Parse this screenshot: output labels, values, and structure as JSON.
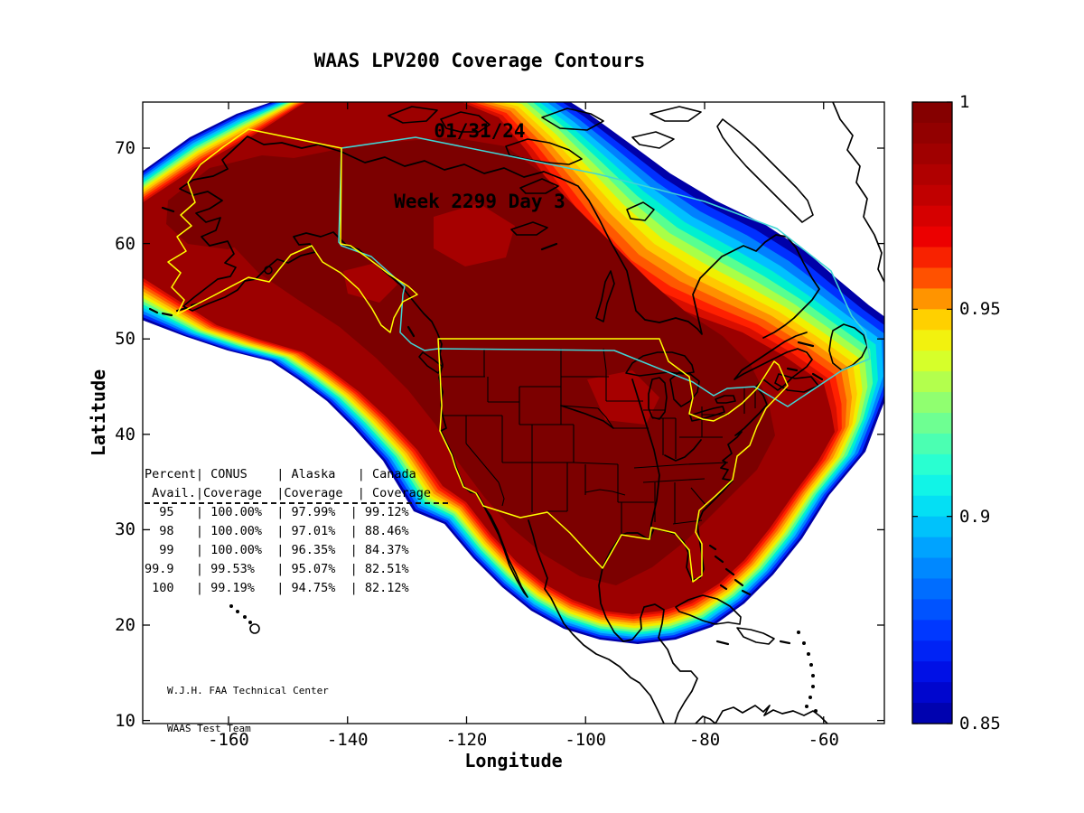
{
  "header": {
    "title": "WAAS LPV200 Coverage Contours",
    "date": "01/31/24",
    "week": "Week 2299 Day 3"
  },
  "axes": {
    "xlabel": "Longitude",
    "ylabel": "Latitude",
    "x_tick_labels": [
      "-160",
      "-140",
      "-120",
      "-100",
      "-80",
      "-60"
    ],
    "x_tick_values": [
      -160,
      -140,
      -120,
      -100,
      -80,
      -60
    ],
    "y_tick_labels": [
      "70",
      "60",
      "50",
      "40",
      "30",
      "20",
      "10"
    ],
    "y_tick_values": [
      70,
      60,
      50,
      40,
      30,
      20,
      10
    ],
    "xlim": [
      -174.4,
      -49.8
    ],
    "ylim": [
      9.7,
      74.8
    ]
  },
  "colorbar": {
    "min": 0.85,
    "max": 1,
    "tick_labels": [
      "1",
      "0.95",
      "0.9",
      "0.85"
    ],
    "tick_values": [
      1,
      0.95,
      0.9,
      0.85
    ]
  },
  "overlay_table": {
    "lines": [
      "Percent| CONUS    | Alaska   | Canada",
      " Avail.|Coverage  |Coverage  | Coverage",
      "  95   | 100.00%  | 97.99%  | 99.12%",
      "  98   | 100.00%  | 97.01%  | 88.46%",
      "  99   | 100.00%  | 96.35%  | 84.37%",
      "99.9   | 99.53%   | 95.07%  | 82.51%",
      " 100   | 99.19%   | 94.75%  | 82.12%"
    ]
  },
  "attribution": {
    "line1": "W.J.H. FAA Technical Center",
    "line2": "WAAS Test Team"
  },
  "palette": {
    "band_colors": [
      "#0000A8",
      "#0030FF",
      "#0080FF",
      "#00C0FF",
      "#00F0D0",
      "#58FF90",
      "#A8FF48",
      "#F0F000",
      "#FFC800",
      "#FF9000",
      "#FF5800",
      "#FF2000",
      "#D80E00"
    ],
    "core": "#9C0000",
    "core_dark": "#7C0000",
    "core_light": "#A60000",
    "conus_alaska_boundary": "#FFFF00",
    "canada_boundary": "#40D6D6",
    "coastline": "#000000",
    "background": "#FFFFFF"
  },
  "chart_data": [
    {
      "type": "heatmap",
      "title": "WAAS LPV200 Coverage Contours",
      "subtitle": [
        "01/31/24",
        "Week 2299 Day 3"
      ],
      "xlabel": "Longitude",
      "ylabel": "Latitude",
      "xlim": [
        -174.4,
        -49.8
      ],
      "ylim": [
        9.7,
        74.8
      ],
      "xticks": [
        -160,
        -140,
        -120,
        -100,
        -80,
        -60
      ],
      "yticks": [
        70,
        60,
        50,
        40,
        30,
        20,
        10
      ],
      "colorbar_range": [
        0.85,
        1
      ],
      "colorbar_ticks": [
        1,
        0.95,
        0.9,
        0.85
      ],
      "legend_position": "right-colorbar",
      "grid": false,
      "description": "Filled contour map of WAAS LPV200 coverage availability over North America. A deep dark-red core (availability ~1.0) covers CONUS, Alaska and most of Canada, grading outward through jet-colormap bands (red, orange, yellow, green, cyan, blue) down to ~0.85 dark blue at the fringes over the surrounding oceans, northeastern Canada and Greenland. Yellow outlines mark the CONUS and Alaska coverage regions, a cyan outline marks the Canada region."
    },
    {
      "type": "table",
      "columns": [
        "Percent Avail.",
        "CONUS Coverage",
        "Alaska Coverage",
        "Canada Coverage"
      ],
      "rows": [
        [
          "95",
          "100.00%",
          "97.99%",
          "99.12%"
        ],
        [
          "98",
          "100.00%",
          "97.01%",
          "88.46%"
        ],
        [
          "99",
          "100.00%",
          "96.35%",
          "84.37%"
        ],
        [
          "99.9",
          "99.53%",
          "95.07%",
          "82.51%"
        ],
        [
          "100",
          "99.19%",
          "94.75%",
          "82.12%"
        ]
      ]
    }
  ]
}
